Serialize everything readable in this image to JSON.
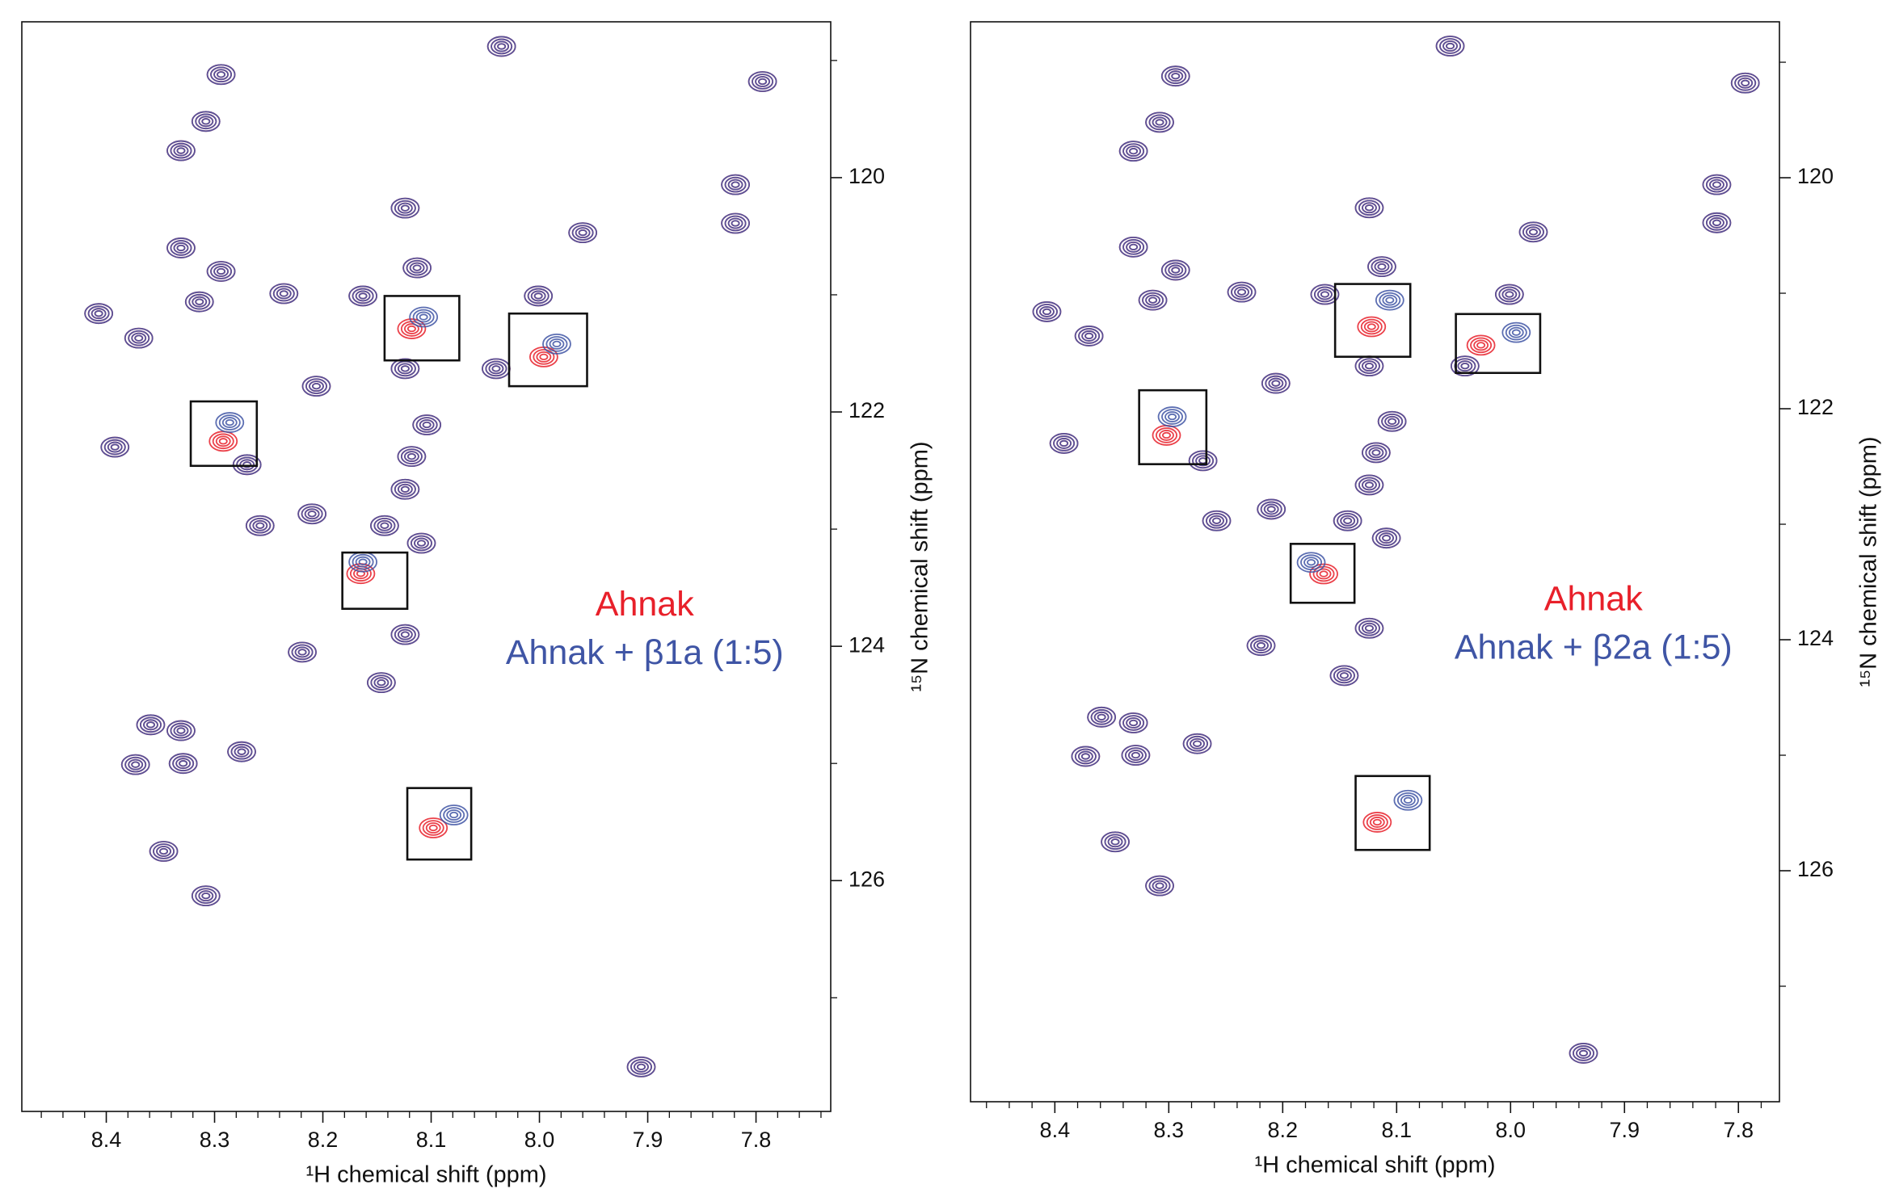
{
  "chart_data": [
    {
      "type": "scatter",
      "x_label": "¹H chemical shift (ppm)",
      "y_label": "¹⁵N chemical shift (ppm)",
      "y_axis_side": "right",
      "xlim": [
        8.478,
        7.731
      ],
      "ylim": [
        118.67,
        127.97
      ],
      "xticks": [
        8.4,
        8.3,
        8.2,
        8.1,
        {
          "value": 8,
          "label": "8.0"
        },
        7.9,
        7.8
      ],
      "xminorticks": [
        8.46,
        8.44,
        8.42,
        8.38,
        8.36,
        8.34,
        8.32,
        8.28,
        8.26,
        8.24,
        8.22,
        8.18,
        8.16,
        8.14,
        8.12,
        8.08,
        8.06,
        8.04,
        8.02,
        7.98,
        7.96,
        7.94,
        7.92,
        7.88,
        7.86,
        7.84,
        7.82,
        7.78,
        7.76,
        7.74
      ],
      "yticks": [
        120,
        122,
        124,
        126
      ],
      "yminorticks": [
        119,
        121,
        123,
        125,
        127
      ],
      "legend_position": "center-right",
      "highlight_boxes": [
        {
          "x": [
            8.143,
            8.074
          ],
          "y": [
            121.01,
            121.56
          ]
        },
        {
          "x": [
            8.028,
            7.956
          ],
          "y": [
            121.16,
            121.78
          ]
        },
        {
          "x": [
            8.322,
            8.261
          ],
          "y": [
            121.91,
            122.46
          ]
        },
        {
          "x": [
            8.182,
            8.122
          ],
          "y": [
            123.2,
            123.68
          ]
        },
        {
          "x": [
            8.122,
            8.063
          ],
          "y": [
            125.21,
            125.82
          ]
        }
      ],
      "series": [
        {
          "name": "Ahnak",
          "color": "#e8202a",
          "x": [
            8.294,
            8.308,
            8.331,
            8.035,
            7.794,
            7.819,
            7.819,
            8.331,
            8.124,
            7.96,
            8.294,
            8.314,
            8.236,
            8.113,
            8.407,
            8.37,
            8.163,
            8.124,
            8.001,
            8.04,
            8.118,
            7.996,
            8.206,
            8.392,
            8.292,
            8.27,
            8.104,
            8.118,
            8.124,
            8.258,
            8.21,
            8.109,
            8.143,
            8.165,
            8.124,
            8.219,
            8.146,
            8.359,
            8.331,
            8.373,
            8.329,
            8.275,
            8.098,
            8.347,
            8.308,
            7.906
          ],
          "values": [
            119.12,
            119.52,
            119.77,
            118.88,
            119.18,
            120.06,
            120.39,
            120.6,
            120.26,
            120.47,
            120.8,
            121.06,
            120.99,
            120.77,
            121.16,
            121.37,
            121.01,
            121.63,
            121.01,
            121.63,
            121.29,
            121.53,
            121.78,
            122.3,
            122.25,
            122.45,
            122.11,
            122.38,
            122.66,
            122.97,
            122.87,
            123.12,
            122.97,
            123.38,
            123.9,
            124.05,
            124.31,
            124.67,
            124.72,
            125.01,
            125,
            124.9,
            125.55,
            125.75,
            126.13,
            127.59
          ]
        },
        {
          "name": "Ahnak + β1a (1:5)",
          "color": "#3f55a5",
          "x": [
            8.294,
            8.308,
            8.331,
            8.035,
            7.794,
            7.819,
            7.819,
            8.331,
            8.124,
            7.96,
            8.294,
            8.314,
            8.236,
            8.113,
            8.407,
            8.37,
            8.163,
            8.124,
            8.001,
            8.04,
            8.107,
            7.984,
            8.206,
            8.392,
            8.286,
            8.27,
            8.104,
            8.118,
            8.124,
            8.258,
            8.21,
            8.109,
            8.143,
            8.163,
            8.124,
            8.219,
            8.146,
            8.359,
            8.331,
            8.373,
            8.329,
            8.275,
            8.079,
            8.347,
            8.308,
            7.906
          ],
          "values": [
            119.12,
            119.52,
            119.77,
            118.88,
            119.18,
            120.06,
            120.39,
            120.6,
            120.26,
            120.47,
            120.8,
            121.06,
            120.99,
            120.77,
            121.16,
            121.37,
            121.01,
            121.63,
            121.01,
            121.63,
            121.19,
            121.42,
            121.78,
            122.3,
            122.09,
            122.45,
            122.11,
            122.38,
            122.66,
            122.97,
            122.87,
            123.12,
            122.97,
            123.28,
            123.9,
            124.05,
            124.31,
            124.67,
            124.72,
            125.01,
            125,
            124.9,
            125.44,
            125.75,
            126.13,
            127.59
          ]
        }
      ]
    },
    {
      "type": "scatter",
      "x_label": "¹H chemical shift (ppm)",
      "y_label": "¹⁵N chemical shift (ppm)",
      "y_axis_side": "right",
      "xlim": [
        8.474,
        7.764
      ],
      "ylim": [
        118.65,
        128.0
      ],
      "xticks": [
        8.4,
        8.3,
        8.2,
        8.1,
        {
          "value": 8,
          "label": "8.0"
        },
        7.9,
        7.8
      ],
      "xminorticks": [
        8.46,
        8.44,
        8.42,
        8.38,
        8.36,
        8.34,
        8.32,
        8.28,
        8.26,
        8.24,
        8.22,
        8.18,
        8.16,
        8.14,
        8.12,
        8.08,
        8.06,
        8.04,
        8.02,
        7.98,
        7.96,
        7.94,
        7.92,
        7.88,
        7.86,
        7.84,
        7.82,
        7.78
      ],
      "yticks": [
        120,
        122,
        124,
        126
      ],
      "yminorticks": [
        119,
        121,
        123,
        125,
        127
      ],
      "legend_position": "center-right",
      "highlight_boxes": [
        {
          "x": [
            8.154,
            8.088
          ],
          "y": [
            120.92,
            121.55
          ]
        },
        {
          "x": [
            8.048,
            7.974
          ],
          "y": [
            121.18,
            121.69
          ]
        },
        {
          "x": [
            8.326,
            8.267
          ],
          "y": [
            121.84,
            122.48
          ]
        },
        {
          "x": [
            8.193,
            8.137
          ],
          "y": [
            123.17,
            123.68
          ]
        },
        {
          "x": [
            8.136,
            8.071
          ],
          "y": [
            125.18,
            125.82
          ]
        }
      ],
      "series": [
        {
          "name": "Ahnak",
          "color": "#e8202a",
          "x": [
            8.294,
            8.308,
            8.331,
            8.053,
            7.794,
            7.819,
            7.819,
            8.331,
            8.124,
            7.98,
            8.294,
            8.314,
            8.236,
            8.113,
            8.407,
            8.37,
            8.163,
            8.124,
            8.001,
            8.04,
            8.122,
            8.026,
            8.206,
            8.392,
            8.302,
            8.27,
            8.104,
            8.118,
            8.124,
            8.258,
            8.21,
            8.109,
            8.143,
            8.164,
            8.124,
            8.219,
            8.146,
            8.359,
            8.331,
            8.373,
            8.329,
            8.275,
            8.117,
            8.347,
            8.308,
            7.936
          ],
          "values": [
            119.12,
            119.52,
            119.77,
            118.86,
            119.18,
            120.06,
            120.39,
            120.6,
            120.26,
            120.47,
            120.8,
            121.06,
            120.99,
            120.77,
            121.16,
            121.37,
            121.01,
            121.63,
            121.01,
            121.63,
            121.29,
            121.45,
            121.78,
            122.3,
            122.23,
            122.45,
            122.11,
            122.38,
            122.66,
            122.97,
            122.87,
            123.12,
            122.97,
            123.43,
            123.9,
            124.05,
            124.31,
            124.67,
            124.72,
            125.01,
            125,
            124.9,
            125.58,
            125.75,
            126.13,
            127.58
          ]
        },
        {
          "name": "Ahnak + β2a (1:5)",
          "color": "#3f55a5",
          "x": [
            8.294,
            8.308,
            8.331,
            8.053,
            7.794,
            7.819,
            7.819,
            8.331,
            8.124,
            7.98,
            8.294,
            8.314,
            8.236,
            8.113,
            8.407,
            8.37,
            8.163,
            8.124,
            8.001,
            8.04,
            8.106,
            7.995,
            8.206,
            8.392,
            8.297,
            8.27,
            8.104,
            8.118,
            8.124,
            8.258,
            8.21,
            8.109,
            8.143,
            8.175,
            8.124,
            8.219,
            8.146,
            8.359,
            8.331,
            8.373,
            8.329,
            8.275,
            8.09,
            8.347,
            8.308,
            7.936
          ],
          "values": [
            119.12,
            119.52,
            119.77,
            118.86,
            119.18,
            120.06,
            120.39,
            120.6,
            120.26,
            120.47,
            120.8,
            121.06,
            120.99,
            120.77,
            121.16,
            121.37,
            121.01,
            121.63,
            121.01,
            121.63,
            121.06,
            121.34,
            121.78,
            122.3,
            122.07,
            122.45,
            122.11,
            122.38,
            122.66,
            122.97,
            122.87,
            123.12,
            122.97,
            123.33,
            123.9,
            124.05,
            124.31,
            124.67,
            124.72,
            125.01,
            125,
            124.9,
            125.39,
            125.75,
            126.13,
            127.58
          ]
        }
      ]
    }
  ]
}
